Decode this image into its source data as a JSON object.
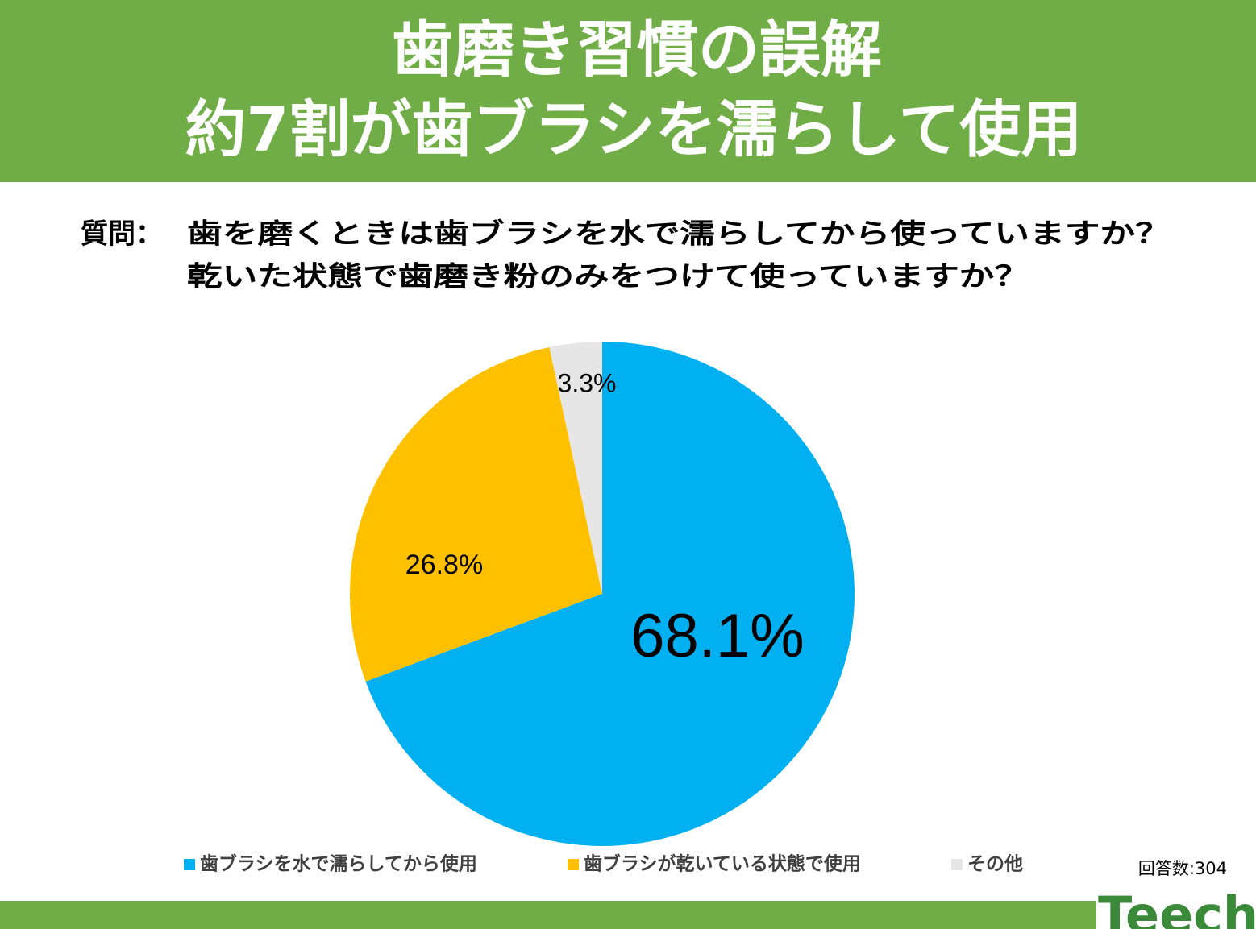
{
  "chart_data": {
    "type": "pie",
    "title": [
      "歯磨き習慣の誤解",
      "約7割が歯ブラシを濡らして使用"
    ],
    "question_label": "質問：",
    "question": [
      "歯を磨くときは歯ブラシを水で濡らしてから使っていますか？",
      "乾いた状態で歯磨き粉のみをつけて使っていますか？"
    ],
    "categories": [
      "歯ブラシを水で濡らしてから使用",
      "歯ブラシが乾いている状態で使用",
      "その他"
    ],
    "values": [
      68.1,
      26.8,
      3.3
    ],
    "value_labels": [
      "68.1%",
      "26.8%",
      "3.3%"
    ],
    "colors": [
      "#00b0f0",
      "#ffc000",
      "#e7e6e6"
    ],
    "note": "回答数:304",
    "logo": "Teech"
  }
}
